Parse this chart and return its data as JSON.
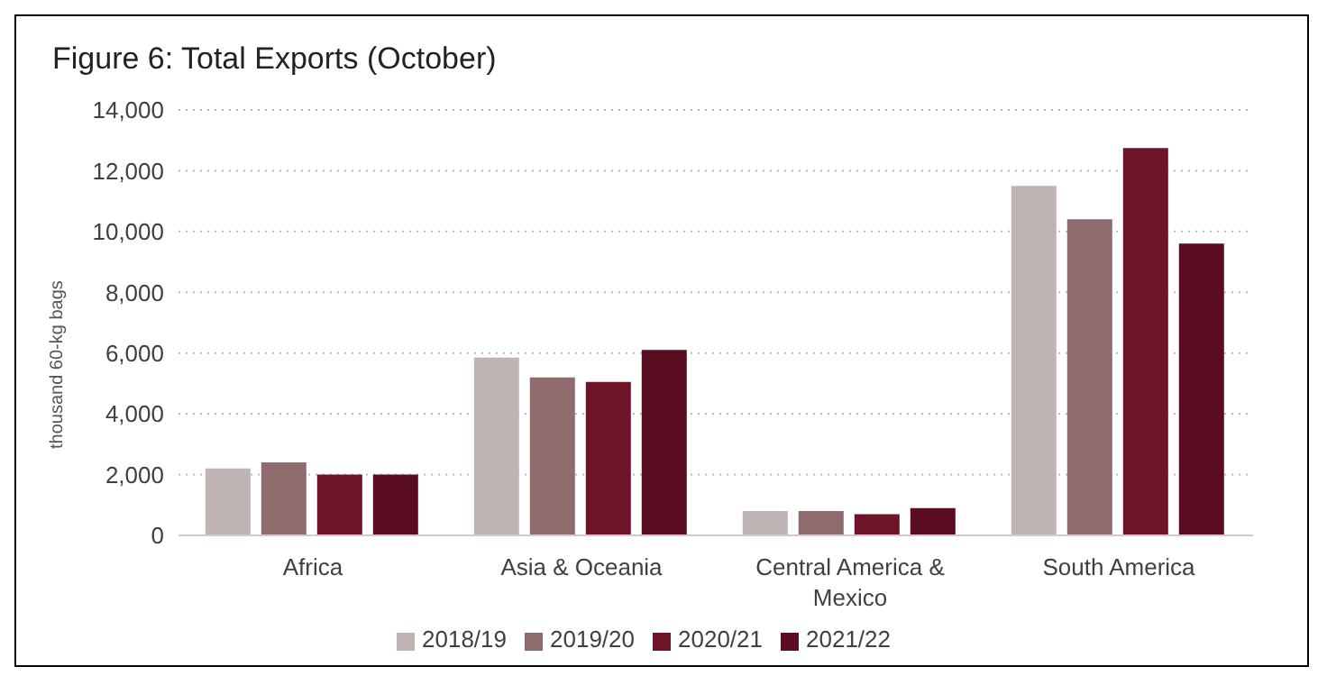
{
  "chart_data": {
    "type": "bar",
    "title": "Figure 6: Total Exports (October)",
    "ylabel": "thousand 60-kg bags",
    "categories": [
      "Africa",
      "Asia & Oceania",
      "Central America & Mexico",
      "South America"
    ],
    "series": [
      {
        "name": "2018/19",
        "color": "#c0b3b3",
        "values": [
          2200,
          5850,
          800,
          11500
        ]
      },
      {
        "name": "2019/20",
        "color": "#8f6b6e",
        "values": [
          2400,
          5200,
          800,
          10400
        ]
      },
      {
        "name": "2020/21",
        "color": "#6e1428",
        "values": [
          2000,
          5050,
          700,
          12750
        ]
      },
      {
        "name": "2021/22",
        "color": "#5a0c20",
        "values": [
          2000,
          6100,
          900,
          9600
        ]
      }
    ],
    "ylim": [
      0,
      14000
    ],
    "yticks": [
      0,
      {
        "value": 2000,
        "label": "2,000"
      },
      {
        "value": 4000,
        "label": "4,000"
      },
      {
        "value": 6000,
        "label": "6,000"
      },
      {
        "value": 8000,
        "label": "8,000"
      },
      {
        "value": 10000,
        "label": "10,000"
      },
      {
        "value": 12000,
        "label": "12,000"
      },
      {
        "value": 14000,
        "label": "14,000"
      }
    ],
    "grid": "y",
    "legend": "bottom"
  }
}
